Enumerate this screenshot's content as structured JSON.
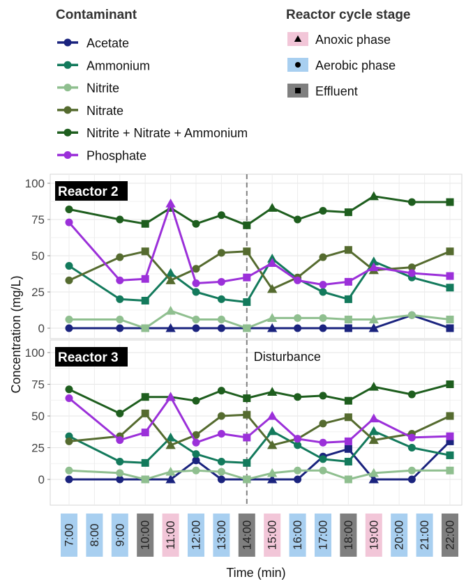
{
  "legend_contaminant": {
    "title": "Contaminant",
    "items": [
      {
        "label": "Acetate",
        "color": "#1a237e"
      },
      {
        "label": "Ammonium",
        "color": "#137a5c"
      },
      {
        "label": "Nitrite",
        "color": "#8fbf8f"
      },
      {
        "label": "Nitrate",
        "color": "#556b2f"
      },
      {
        "label": "Nitrite + Nitrate + Ammonium",
        "color": "#1e5e1e"
      },
      {
        "label": "Phosphate",
        "color": "#9b30d9"
      }
    ]
  },
  "legend_stage": {
    "title": "Reactor cycle stage",
    "items": [
      {
        "label": "Anoxic phase",
        "color": "#f2c6d8",
        "icon": "triangle-icon"
      },
      {
        "label": "Aerobic phase",
        "color": "#a8cff0",
        "icon": "circle-icon"
      },
      {
        "label": "Effluent",
        "color": "#7f7f7f",
        "icon": "square-icon"
      }
    ]
  },
  "disturbance_label": "Disturbance",
  "chart_data": {
    "type": "line",
    "xlabel": "Time (min)",
    "ylabel": "Concentration (mg/L)",
    "ylim": [
      0,
      100
    ],
    "yticks": [
      0,
      25,
      50,
      75,
      100
    ],
    "grid": true,
    "disturbance_at": "14:00",
    "x": [
      "7:00",
      "9:00",
      "10:00",
      "11:00",
      "12:00",
      "13:00",
      "14:00",
      "15:00",
      "16:00",
      "17:00",
      "18:00",
      "19:00",
      "20:30",
      "22:00"
    ],
    "stages": [
      "aerobic",
      "aerobic",
      "effluent",
      "anoxic",
      "aerobic",
      "aerobic",
      "effluent",
      "anoxic",
      "aerobic",
      "aerobic",
      "effluent",
      "anoxic",
      "aerobic",
      "effluent"
    ],
    "axis_labels": [
      {
        "label": "7:00",
        "stage": "aerobic"
      },
      {
        "label": "8:00",
        "stage": "aerobic"
      },
      {
        "label": "9:00",
        "stage": "aerobic"
      },
      {
        "label": "10:00",
        "stage": "effluent"
      },
      {
        "label": "11:00",
        "stage": "anoxic"
      },
      {
        "label": "12:00",
        "stage": "aerobic"
      },
      {
        "label": "13:00",
        "stage": "aerobic"
      },
      {
        "label": "14:00",
        "stage": "effluent"
      },
      {
        "label": "15:00",
        "stage": "anoxic"
      },
      {
        "label": "16:00",
        "stage": "aerobic"
      },
      {
        "label": "17:00",
        "stage": "aerobic"
      },
      {
        "label": "18:00",
        "stage": "effluent"
      },
      {
        "label": "19:00",
        "stage": "anoxic"
      },
      {
        "label": "20:00",
        "stage": "aerobic"
      },
      {
        "label": "21:00",
        "stage": "aerobic"
      },
      {
        "label": "22:00",
        "stage": "effluent"
      }
    ],
    "panels": [
      {
        "title": "Reactor 2",
        "series": [
          {
            "name": "Acetate",
            "values": [
              0,
              0,
              0,
              0,
              0,
              0,
              0,
              0,
              0,
              0,
              0,
              0,
              9,
              0
            ]
          },
          {
            "name": "Ammonium",
            "values": [
              43,
              20,
              19,
              38,
              25,
              20,
              18,
              48,
              34,
              25,
              20,
              46,
              35,
              28
            ]
          },
          {
            "name": "Nitrite",
            "values": [
              6,
              6,
              0,
              12,
              6,
              6,
              0,
              7,
              7,
              7,
              6,
              6,
              9,
              6
            ]
          },
          {
            "name": "Nitrate",
            "values": [
              33,
              49,
              53,
              33,
              41,
              52,
              53,
              27,
              35,
              49,
              54,
              40,
              42,
              53
            ]
          },
          {
            "name": "Nitrite + Nitrate + Ammonium",
            "values": [
              82,
              75,
              72,
              83,
              72,
              78,
              71,
              83,
              75,
              81,
              80,
              91,
              87,
              87
            ]
          },
          {
            "name": "Phosphate",
            "values": [
              73,
              33,
              34,
              86,
              31,
              32,
              35,
              45,
              33,
              30,
              32,
              42,
              38,
              36
            ]
          }
        ]
      },
      {
        "title": "Reactor 3",
        "series": [
          {
            "name": "Acetate",
            "values": [
              0,
              0,
              0,
              0,
              15,
              0,
              0,
              0,
              0,
              18,
              24,
              0,
              0,
              30
            ]
          },
          {
            "name": "Ammonium",
            "values": [
              34,
              14,
              13,
              33,
              20,
              14,
              13,
              38,
              27,
              16,
              14,
              38,
              25,
              19
            ]
          },
          {
            "name": "Nitrite",
            "values": [
              7,
              5,
              0,
              6,
              7,
              6,
              0,
              5,
              7,
              7,
              0,
              5,
              7,
              7
            ]
          },
          {
            "name": "Nitrate",
            "values": [
              30,
              34,
              52,
              27,
              35,
              50,
              51,
              27,
              32,
              44,
              49,
              31,
              36,
              50
            ]
          },
          {
            "name": "Nitrite + Nitrate + Ammonium",
            "values": [
              71,
              52,
              65,
              65,
              62,
              70,
              64,
              69,
              65,
              66,
              62,
              73,
              67,
              75
            ]
          },
          {
            "name": "Phosphate",
            "values": [
              64,
              31,
              37,
              65,
              29,
              36,
              33,
              50,
              32,
              29,
              30,
              48,
              33,
              34
            ]
          }
        ]
      }
    ]
  }
}
